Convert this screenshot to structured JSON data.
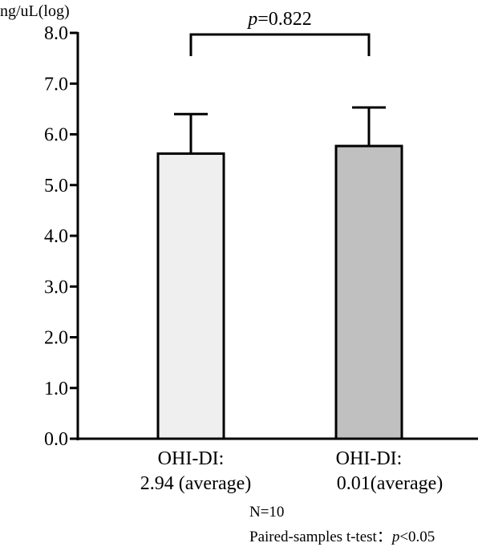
{
  "chart_data": {
    "type": "bar",
    "ylabel": "ng/uL(log)",
    "ylim": [
      0,
      8
    ],
    "yticks": [
      "0.0",
      "1.0",
      "2.0",
      "3.0",
      "4.0",
      "5.0",
      "6.0",
      "7.0",
      "8.0"
    ],
    "categories": [
      {
        "line1": "OHI-DI:",
        "line2": "2.94 (average)"
      },
      {
        "line1": "OHI-DI:",
        "line2": "0.01(average)"
      }
    ],
    "values": [
      5.62,
      5.77
    ],
    "errors": [
      0.78,
      0.76
    ],
    "bar_colors": [
      "#efefef",
      "#c0c0c0"
    ],
    "bracket": {
      "p_label": "p",
      "p_value": "=0.822"
    },
    "grid": false,
    "legend": "none"
  },
  "notes": {
    "n": "N=10",
    "test_prefix": "Paired-samples t-test：",
    "test_p": "p",
    "test_suffix": "<0.05"
  }
}
